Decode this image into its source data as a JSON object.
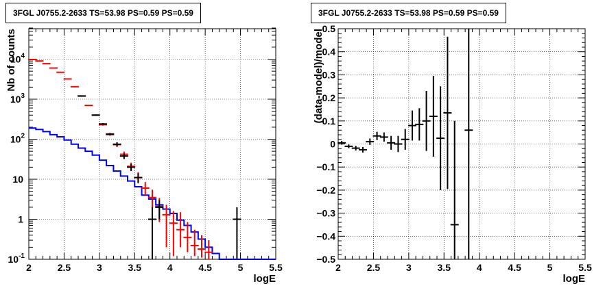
{
  "chart_data": [
    {
      "type": "line",
      "title": "3FGL J0755.2-2633 TS=53.98 PS=0.59 PS=0.59",
      "xlabel": "logE",
      "ylabel": "Nb of counts",
      "xlim": [
        2,
        5.5
      ],
      "ylim": [
        0.1,
        60000
      ],
      "yscale": "log",
      "grid": true,
      "x_ticks": [
        "2",
        "2.5",
        "3",
        "3.5",
        "4",
        "4.5",
        "5",
        "5.5"
      ],
      "y_ticks": [
        "10^-1",
        "1",
        "10",
        "10^2",
        "10^3",
        "10^4"
      ],
      "bin_edges": [
        2.0,
        2.1,
        2.2,
        2.3,
        2.4,
        2.5,
        2.6,
        2.7,
        2.8,
        2.9,
        3.0,
        3.1,
        3.2,
        3.3,
        3.4,
        3.5,
        3.6,
        3.7,
        3.8,
        3.9,
        4.0,
        4.1,
        4.2,
        4.3,
        4.4,
        4.5,
        4.6,
        4.7,
        4.8,
        4.9,
        5.0,
        5.1,
        5.2,
        5.3,
        5.4,
        5.5
      ],
      "series": [
        {
          "color": "#0000ff",
          "style": "step",
          "values": [
            190,
            175,
            155,
            130,
            115,
            95,
            75,
            60,
            50,
            40,
            30,
            22,
            16,
            12,
            9,
            6.5,
            4,
            3.2,
            2.3,
            1.8,
            1.4,
            0.95,
            0.7,
            0.48,
            0.32,
            0.2,
            0.14,
            0.1,
            0.1,
            0.1,
            0.1,
            0.1,
            0.1,
            0.1,
            0.1
          ]
        },
        {
          "color": "#ff0000",
          "style": "errorbar",
          "points": [
            {
              "x": 2.05,
              "y": 9800,
              "lo": 9500,
              "hi": 10100
            },
            {
              "x": 2.15,
              "y": 9000,
              "lo": 8700,
              "hi": 9300
            },
            {
              "x": 2.25,
              "y": 7700,
              "lo": 7450,
              "hi": 7950
            },
            {
              "x": 2.35,
              "y": 6000,
              "lo": 5800,
              "hi": 6200
            },
            {
              "x": 2.45,
              "y": 4700,
              "lo": 4550,
              "hi": 4850
            },
            {
              "x": 2.55,
              "y": 3200,
              "lo": 3100,
              "hi": 3300
            },
            {
              "x": 2.65,
              "y": 2050,
              "lo": 1980,
              "hi": 2120
            },
            {
              "x": 2.75,
              "y": 1200,
              "lo": 1160,
              "hi": 1240
            },
            {
              "x": 2.85,
              "y": 700,
              "lo": 675,
              "hi": 725
            },
            {
              "x": 2.95,
              "y": 400,
              "lo": 385,
              "hi": 415
            },
            {
              "x": 3.05,
              "y": 230,
              "lo": 218,
              "hi": 242
            },
            {
              "x": 3.15,
              "y": 130,
              "lo": 122,
              "hi": 138
            },
            {
              "x": 3.25,
              "y": 73,
              "lo": 64,
              "hi": 82
            },
            {
              "x": 3.35,
              "y": 42,
              "lo": 35,
              "hi": 49
            },
            {
              "x": 3.45,
              "y": 21,
              "lo": 17,
              "hi": 26
            },
            {
              "x": 3.55,
              "y": 11,
              "lo": 8,
              "hi": 15
            },
            {
              "x": 3.65,
              "y": 6,
              "lo": 4,
              "hi": 8.5
            },
            {
              "x": 3.75,
              "y": 3.5,
              "lo": 1.8,
              "hi": 5.5
            },
            {
              "x": 3.85,
              "y": 2.1,
              "lo": 0.85,
              "hi": 3.4
            },
            {
              "x": 3.95,
              "y": 1.3,
              "lo": 0.2,
              "hi": 2.3
            },
            {
              "x": 4.05,
              "y": 0.8,
              "lo": 0.12,
              "hi": 1.6
            },
            {
              "x": 4.15,
              "y": 0.55,
              "lo": 0.2,
              "hi": 1.5
            },
            {
              "x": 4.25,
              "y": 0.35,
              "lo": 0.15,
              "hi": 0.85
            },
            {
              "x": 4.35,
              "y": 0.22,
              "lo": 0.12,
              "hi": 0.55
            },
            {
              "x": 4.45,
              "y": 0.18,
              "lo": 0.11,
              "hi": 0.4
            },
            {
              "x": 4.55,
              "y": 0.15,
              "lo": 0.1,
              "hi": 0.3
            }
          ]
        },
        {
          "color": "#000000",
          "style": "errorbar",
          "points": [
            {
              "x": 2.75,
              "y": 1200,
              "lo": 1160,
              "hi": 1240
            },
            {
              "x": 2.95,
              "y": 400,
              "lo": 385,
              "hi": 415
            },
            {
              "x": 3.05,
              "y": 240,
              "lo": 228,
              "hi": 252
            },
            {
              "x": 3.15,
              "y": 135,
              "lo": 127,
              "hi": 143
            },
            {
              "x": 3.25,
              "y": 75,
              "lo": 66,
              "hi": 84
            },
            {
              "x": 3.35,
              "y": 38,
              "lo": 32,
              "hi": 44
            },
            {
              "x": 3.45,
              "y": 20,
              "lo": 16,
              "hi": 24
            },
            {
              "x": 3.55,
              "y": 11,
              "lo": 8,
              "hi": 14
            },
            {
              "x": 3.75,
              "y": 1,
              "lo": 0.1,
              "hi": 2
            },
            {
              "x": 3.85,
              "y": 2,
              "lo": 1,
              "hi": 3
            },
            {
              "x": 4.95,
              "y": 1,
              "lo": 0.1,
              "hi": 2
            }
          ]
        }
      ]
    },
    {
      "type": "scatter",
      "title": "3FGL J0755.2-2633 TS=53.98 PS=0.59 PS=0.59",
      "xlabel": "logE",
      "ylabel": "(data-model)/model",
      "xlim": [
        2,
        5.5
      ],
      "ylim": [
        -0.5,
        0.5
      ],
      "grid": true,
      "x_ticks": [
        "2",
        "2.5",
        "3",
        "3.5",
        "4",
        "4.5",
        "5",
        "5.5"
      ],
      "y_ticks": [
        "−0.5",
        "−0.4",
        "−0.3",
        "−0.2",
        "−0.1",
        "0",
        "0.1",
        "0.2",
        "0.3",
        "0.4",
        "0.5"
      ],
      "series": [
        {
          "color": "#000000",
          "style": "errorbar",
          "points": [
            {
              "x": 2.05,
              "y": 0.005,
              "err": 0.008
            },
            {
              "x": 2.15,
              "y": -0.01,
              "err": 0.008
            },
            {
              "x": 2.25,
              "y": -0.018,
              "err": 0.01
            },
            {
              "x": 2.35,
              "y": -0.025,
              "err": 0.012
            },
            {
              "x": 2.45,
              "y": 0.01,
              "err": 0.014
            },
            {
              "x": 2.55,
              "y": 0.035,
              "err": 0.018
            },
            {
              "x": 2.65,
              "y": 0.03,
              "err": 0.02
            },
            {
              "x": 2.75,
              "y": 0.005,
              "err": 0.03
            },
            {
              "x": 2.85,
              "y": 0.0,
              "err": 0.035
            },
            {
              "x": 2.95,
              "y": 0.02,
              "err": 0.045
            },
            {
              "x": 3.05,
              "y": 0.08,
              "err": 0.065
            },
            {
              "x": 3.15,
              "y": 0.085,
              "err": 0.07
            },
            {
              "x": 3.25,
              "y": 0.1,
              "err": 0.13
            },
            {
              "x": 3.35,
              "y": 0.12,
              "err": 0.175
            },
            {
              "x": 3.45,
              "y": 0.025,
              "err": 0.225
            },
            {
              "x": 3.55,
              "y": 0.135,
              "err": 0.33
            },
            {
              "x": 3.65,
              "y": -0.35,
              "err": 0.45
            },
            {
              "x": 3.85,
              "y": 0.06,
              "err": 0.6
            }
          ]
        }
      ]
    }
  ]
}
